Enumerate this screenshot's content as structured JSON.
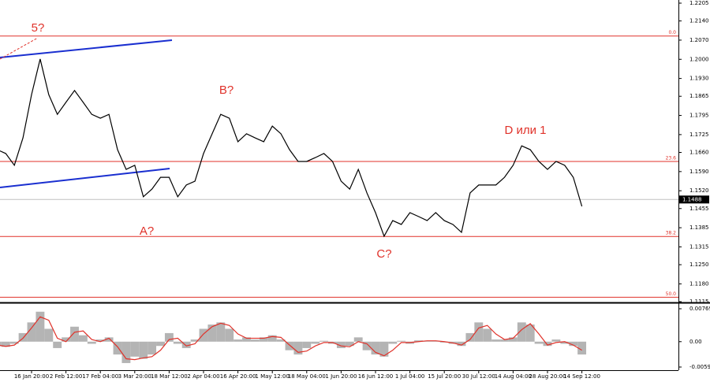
{
  "chart_data": [
    {
      "type": "line",
      "categories": [
        null,
        null,
        null,
        null,
        "16 Jan 20:00",
        null,
        null,
        null,
        "2 Feb 12:00",
        null,
        null,
        null,
        "17 Feb 04:00",
        null,
        null,
        null,
        "3 Mar 20:00",
        null,
        null,
        null,
        "18 Mar 12:00",
        null,
        null,
        null,
        "2 Apr 04:00",
        null,
        null,
        null,
        "16 Apr 20:00",
        null,
        null,
        null,
        "1 May 12:00",
        null,
        null,
        null,
        "18 May 04:00",
        null,
        null,
        null,
        "1 Jun 20:00",
        null,
        null,
        null,
        "16 Jun 12:00",
        null,
        null,
        null,
        "1 Jul 04:00",
        null,
        null,
        null,
        "15 Jul 20:00",
        null,
        null,
        null,
        "30 Jul 12:00",
        null,
        null,
        null,
        "14 Aug 04:00",
        null,
        null,
        null,
        "28 Aug 20:00",
        null,
        null,
        null,
        "14 Sep 12:00"
      ],
      "series": [
        {
          "color": "#000000",
          "values": [
            1.167,
            1.1656,
            1.1613,
            1.1713,
            1.1871,
            1.2001,
            1.1871,
            1.1799,
            1.1843,
            1.1886,
            1.1843,
            1.1799,
            1.1785,
            1.1799,
            1.167,
            1.1598,
            1.1613,
            1.1498,
            1.1526,
            1.1569,
            1.1569,
            1.1498,
            1.1541,
            1.1555,
            1.1656,
            1.1728,
            1.1799,
            1.1785,
            1.1699,
            1.1728,
            1.1713,
            1.1699,
            1.1756,
            1.1728,
            1.167,
            1.1627,
            1.1627,
            1.1641,
            1.1656,
            1.1627,
            1.1555,
            1.1526,
            1.1598,
            1.1512,
            1.144,
            1.1354,
            1.1411,
            1.1397,
            1.144,
            1.1426,
            1.1411,
            1.144,
            1.1411,
            1.1397,
            1.1368,
            1.1512,
            1.1541,
            1.1541,
            1.1541,
            1.1569,
            1.1613,
            1.1684,
            1.167,
            1.1627,
            1.1598,
            1.1627,
            1.1613,
            1.1569,
            1.1463
          ]
        }
      ],
      "ylim": [
        1.1115,
        1.2205
      ],
      "yticks": [
        {
          "value": 1.2205,
          "label": "1.2205"
        },
        {
          "value": 1.214,
          "label": "1.2140"
        },
        {
          "value": 1.207,
          "label": "1.2070"
        },
        {
          "value": 1.2,
          "label": "1.2000"
        },
        {
          "value": 1.193,
          "label": "1.1930"
        },
        {
          "value": 1.1865,
          "label": "1.1865"
        },
        {
          "value": 1.1795,
          "label": "1.1795"
        },
        {
          "value": 1.1725,
          "label": "1.1725"
        },
        {
          "value": 1.166,
          "label": "1.1660"
        },
        {
          "value": 1.159,
          "label": "1.1590"
        },
        {
          "value": 1.152,
          "label": "1.1520"
        },
        {
          "value": 1.1455,
          "label": "1.1455"
        },
        {
          "value": 1.1385,
          "label": "1.1385"
        },
        {
          "value": 1.1315,
          "label": "1.1315"
        },
        {
          "value": 1.125,
          "label": "1.1250"
        },
        {
          "value": 1.118,
          "label": "1.1180"
        },
        {
          "value": 1.1115,
          "label": "1.1115"
        }
      ],
      "levels": [
        {
          "value": 1.2085,
          "label": "0.0"
        },
        {
          "value": 1.1627,
          "label": "23.6"
        },
        {
          "value": 1.1353,
          "label": "38.2"
        },
        {
          "value": 1.1131,
          "label": "50.0"
        }
      ],
      "level_color": "#e0322a",
      "last_price": 1.1488,
      "annotations": [
        "5?",
        "A?",
        "B?",
        "C?",
        "D или 1"
      ]
    },
    {
      "type": "histogram-oscillator",
      "series": [
        {
          "color": "#b4b4b4",
          "values": [
            -0.001,
            -0.0012,
            -0.0005,
            0.002,
            0.0045,
            0.007,
            0.003,
            -0.0015,
            0.001,
            0.0035,
            0.0015,
            -0.0005,
            0.0005,
            0.001,
            -0.003,
            -0.005,
            -0.0035,
            -0.004,
            -0.003,
            -0.001,
            0.002,
            -0.0005,
            -0.0015,
            0.0005,
            0.003,
            0.004,
            0.0045,
            0.003,
            0.0005,
            0.001,
            0.0005,
            0.001,
            0.0015,
            0.0005,
            -0.002,
            -0.003,
            -0.0015,
            -0.0005,
            0.0002,
            -0.0005,
            -0.0015,
            -0.001,
            0.001,
            -0.002,
            -0.003,
            -0.0035,
            -0.0005,
            0.0002,
            -0.0005,
            0.0003,
            0.0002,
            0.0002,
            -0.0002,
            -0.0005,
            -0.001,
            0.002,
            0.0045,
            0.003,
            0.0005,
            0.0005,
            0.001,
            0.0045,
            0.004,
            -0.0005,
            -0.001,
            0.0005,
            -0.0005,
            -0.001,
            -0.003
          ]
        },
        {
          "color": "#e0322a",
          "values": [
            -0.0008,
            -0.0011,
            -0.0008,
            0.0008,
            0.0032,
            0.0058,
            0.005,
            0.0008,
            0.0,
            0.0022,
            0.0025,
            0.0005,
            0.0,
            0.0008,
            -0.0012,
            -0.004,
            -0.0042,
            -0.0038,
            -0.0035,
            -0.002,
            0.0005,
            0.0008,
            -0.001,
            -0.0005,
            0.0018,
            0.0035,
            0.0043,
            0.0038,
            0.0018,
            0.0008,
            0.0008,
            0.0008,
            0.0012,
            0.001,
            -0.0008,
            -0.0025,
            -0.0022,
            -0.001,
            -0.0002,
            -0.0002,
            -0.001,
            -0.0012,
            0.0,
            -0.0005,
            -0.0025,
            -0.0033,
            -0.002,
            -0.0002,
            -0.0002,
            0.0,
            0.0002,
            0.0002,
            0.0,
            -0.0003,
            -0.0008,
            0.0005,
            0.0032,
            0.0038,
            0.0018,
            0.0005,
            0.0008,
            0.0028,
            0.0042,
            0.0018,
            -0.0008,
            -0.0002,
            0.0,
            -0.0008,
            -0.002
          ]
        }
      ],
      "ylim": [
        -0.00593,
        0.00769
      ],
      "yticks": [
        0.00769,
        {
          "value": 0,
          "label": "0.00"
        },
        -0.00593
      ]
    }
  ]
}
